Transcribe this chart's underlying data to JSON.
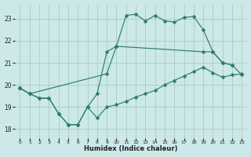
{
  "xlabel": "Humidex (Indice chaleur)",
  "bg_color": "#cce8e8",
  "grid_color": "#aacccc",
  "line_color": "#2d7d6e",
  "xlim": [
    -0.5,
    23.5
  ],
  "ylim": [
    17.6,
    23.65
  ],
  "xticks": [
    0,
    1,
    2,
    3,
    4,
    5,
    6,
    7,
    8,
    9,
    10,
    11,
    12,
    13,
    14,
    15,
    16,
    17,
    18,
    19,
    20,
    21,
    22,
    23
  ],
  "yticks": [
    18,
    19,
    20,
    21,
    22,
    23
  ],
  "line1_x": [
    0,
    1,
    2,
    3,
    4,
    5,
    6,
    7,
    8,
    9,
    10,
    11,
    12,
    13,
    14,
    15,
    16,
    17,
    18,
    19,
    20,
    21,
    22,
    23
  ],
  "line1_y": [
    19.85,
    19.6,
    19.4,
    19.4,
    18.7,
    18.2,
    18.2,
    19.0,
    18.5,
    19.0,
    19.1,
    19.25,
    19.45,
    19.6,
    19.75,
    20.0,
    20.2,
    20.4,
    20.6,
    20.8,
    20.55,
    20.35,
    20.45,
    20.5
  ],
  "line2_x": [
    0,
    1,
    2,
    3,
    4,
    5,
    6,
    7,
    8,
    9,
    10,
    11,
    12,
    13,
    14,
    15,
    16,
    17,
    18,
    19,
    20,
    21,
    22
  ],
  "line2_y": [
    19.85,
    19.6,
    19.4,
    19.4,
    18.7,
    18.2,
    18.2,
    19.0,
    19.6,
    21.5,
    21.75,
    23.15,
    23.2,
    22.9,
    23.15,
    22.9,
    22.85,
    23.05,
    23.1,
    22.5,
    21.5,
    21.0,
    20.9
  ],
  "line3_x": [
    0,
    1,
    9,
    10,
    19,
    20,
    21,
    22,
    23
  ],
  "line3_y": [
    19.85,
    19.6,
    20.5,
    21.75,
    21.5,
    21.5,
    21.0,
    20.9,
    20.45
  ],
  "markersize": 2.5
}
